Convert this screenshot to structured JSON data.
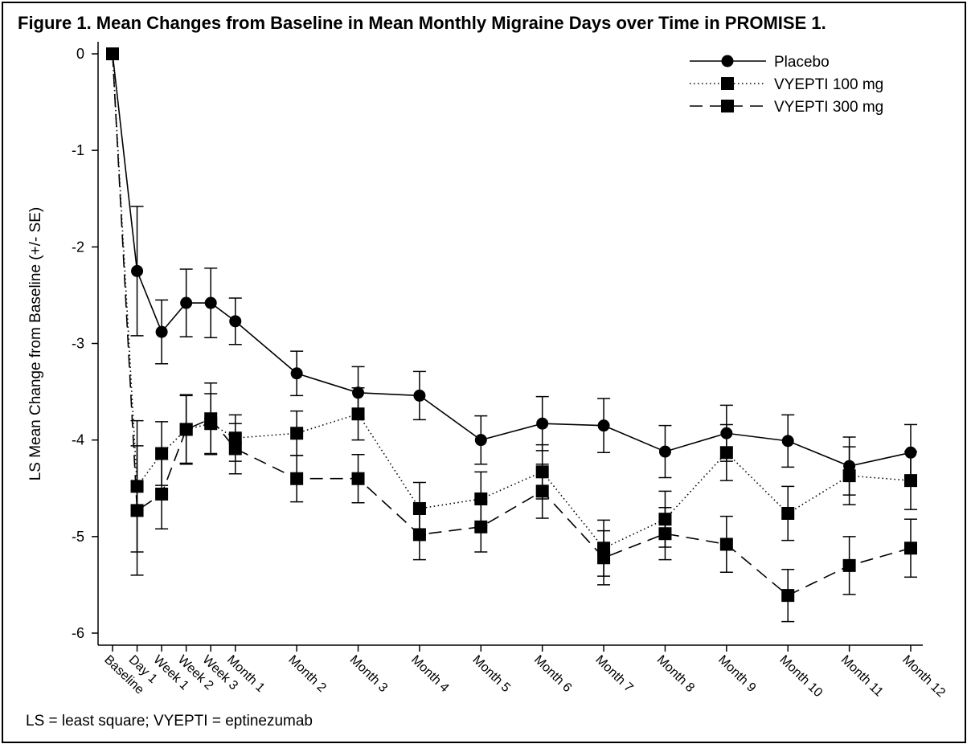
{
  "footnote": "LS = least square; VYEPTI = eptinezumab",
  "chart_data": {
    "type": "line",
    "title": "Figure 1. Mean Changes from Baseline in Mean Monthly Migraine Days over Time in PROMISE 1.",
    "xlabel": "",
    "ylabel": "LS Mean Change from Baseline (+/- SE)",
    "ylim": [
      -6,
      0
    ],
    "yticks": [
      0,
      -1,
      -2,
      -3,
      -4,
      -5,
      -6
    ],
    "ytick_labels": [
      "0",
      "-1",
      "-2",
      "-3",
      "-4",
      "-5",
      "-6"
    ],
    "categories": [
      "Baseline",
      "Day 1",
      "Week 1",
      "Week 2",
      "Week 3",
      "Month 1",
      "Month 2",
      "Month 3",
      "Month 4",
      "Month 5",
      "Month 6",
      "Month 7",
      "Month 8",
      "Month 9",
      "Month 10",
      "Month 11",
      "Month 12"
    ],
    "x": [
      0,
      0.2,
      0.4,
      0.6,
      0.8,
      1,
      1.5,
      2,
      2.5,
      3,
      3.5,
      4,
      4.5,
      5,
      5.5,
      6,
      6.5
    ],
    "legend_position": "top-right",
    "series": [
      {
        "name": "Placebo",
        "line_style": "solid",
        "marker": "circle",
        "values": [
          0,
          -2.25,
          -2.88,
          -2.58,
          -2.58,
          -2.77,
          -3.31,
          -3.51,
          -3.54,
          -4.0,
          -3.83,
          -3.85,
          -4.12,
          -3.93,
          -4.01,
          -4.27,
          -4.13
        ],
        "se": [
          0,
          0.67,
          0.33,
          0.35,
          0.36,
          0.24,
          0.23,
          0.27,
          0.25,
          0.25,
          0.28,
          0.28,
          0.27,
          0.29,
          0.27,
          0.3,
          0.29
        ]
      },
      {
        "name": "VYEPTI 100 mg",
        "line_style": "dotted",
        "marker": "square",
        "values": [
          0,
          -4.48,
          -4.14,
          -3.89,
          -3.83,
          -3.98,
          -3.93,
          -3.73,
          -4.71,
          -4.61,
          -4.33,
          -5.12,
          -4.82,
          -4.13,
          -4.76,
          -4.37,
          -4.42
        ],
        "se": [
          0,
          0.68,
          0.33,
          0.36,
          0.31,
          0.24,
          0.23,
          0.27,
          0.27,
          0.28,
          0.28,
          0.29,
          0.29,
          0.29,
          0.28,
          0.3,
          0.3
        ]
      },
      {
        "name": "VYEPTI 300 mg",
        "line_style": "dashed",
        "marker": "square",
        "values": [
          0,
          -4.73,
          -4.56,
          -3.89,
          -3.78,
          -4.09,
          -4.4,
          -4.4,
          -4.98,
          -4.9,
          -4.53,
          -5.22,
          -4.97,
          -5.08,
          -5.61,
          -5.3,
          -5.12
        ],
        "se": [
          0,
          0.67,
          0.36,
          0.35,
          0.37,
          0.26,
          0.24,
          0.25,
          0.26,
          0.26,
          0.28,
          0.28,
          0.27,
          0.29,
          0.27,
          0.3,
          0.3
        ]
      }
    ]
  }
}
